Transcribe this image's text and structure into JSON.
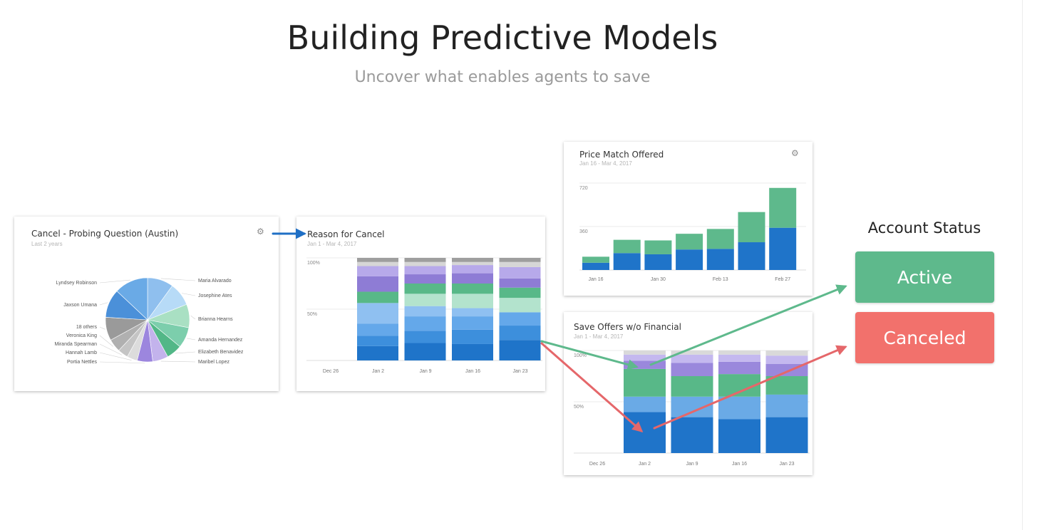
{
  "header": {
    "title": "Building Predictive Models",
    "subtitle": "Uncover what enables agents to save"
  },
  "account_status": {
    "title": "Account Status",
    "active_label": "Active",
    "canceled_label": "Canceled",
    "active_color": "#5eb98c",
    "canceled_color": "#f2716c"
  },
  "colors": {
    "arrow_blue": "#1f6fc5",
    "arrow_green": "#5eb98c",
    "arrow_red": "#e5676a"
  },
  "chart_data": [
    {
      "type": "pie",
      "title": "Cancel - Probing Question (Austin)",
      "subtitle": "Last 2 years",
      "slices": [
        {
          "label": "Maria Alvarado",
          "value": 10,
          "color": "#8fbfee"
        },
        {
          "label": "Josephine Ates",
          "value": 9,
          "color": "#b7dbf7"
        },
        {
          "label": "Brianna Hearns",
          "value": 9,
          "color": "#a9e0c3"
        },
        {
          "label": "Amanda Hernandez",
          "value": 8,
          "color": "#7cceac"
        },
        {
          "label": "Elizabeth Benavidez",
          "value": 6,
          "color": "#52b787"
        },
        {
          "label": "Maribel Lopez",
          "value": 6,
          "color": "#c3b3ec"
        },
        {
          "label": "Portia Nettles",
          "value": 6,
          "color": "#9c86de"
        },
        {
          "label": "Hannah Lamb",
          "value": 4,
          "color": "#dcdcdc"
        },
        {
          "label": "Miranda Spearman",
          "value": 4,
          "color": "#c4c4c4"
        },
        {
          "label": "Veronica King",
          "value": 5,
          "color": "#b0b0b0"
        },
        {
          "label": "18 others",
          "value": 9,
          "color": "#9a9a9a"
        },
        {
          "label": "Jaxson Umana",
          "value": 11,
          "color": "#4b90d9"
        },
        {
          "label": "Lyndsey Robinson",
          "value": 13,
          "color": "#6aaae6"
        }
      ]
    },
    {
      "type": "bar",
      "stacked": true,
      "normalized": true,
      "title": "Reason for Cancel",
      "subtitle": "Jan 1 - Mar 4, 2017",
      "categories": [
        "Jan 2",
        "Jan 9",
        "Jan 16",
        "Jan 23"
      ],
      "x_tick_labels": [
        "Dec 26",
        "Jan 2",
        "Jan 9",
        "Jan 16",
        "Jan 23"
      ],
      "y_tick_labels": [
        "100%",
        "50%"
      ],
      "ylim": [
        0,
        100
      ],
      "series": [
        {
          "values": [
            14,
            17,
            16,
            20
          ],
          "color": "#1f74c9"
        },
        {
          "values": [
            10,
            12,
            14,
            14
          ],
          "color": "#3d8fdc"
        },
        {
          "values": [
            12,
            14,
            13,
            13
          ],
          "color": "#64a8ea"
        },
        {
          "values": [
            20,
            10,
            8,
            0
          ],
          "color": "#8fc0f1"
        },
        {
          "values": [
            0,
            12,
            14,
            14
          ],
          "color": "#b3e3cd"
        },
        {
          "values": [
            11,
            10,
            10,
            10
          ],
          "color": "#58b888"
        },
        {
          "values": [
            15,
            9,
            10,
            9
          ],
          "color": "#8e7cd5"
        },
        {
          "values": [
            10,
            8,
            8,
            11
          ],
          "color": "#b7a9ea"
        },
        {
          "values": [
            4,
            4,
            3,
            5
          ],
          "color": "#d6d6d6"
        },
        {
          "values": [
            4,
            4,
            4,
            4
          ],
          "color": "#9e9e9e"
        }
      ]
    },
    {
      "type": "bar",
      "stacked": true,
      "title": "Price Match Offered",
      "subtitle": "Jan 16 - Mar 4, 2017",
      "categories": [
        "Jan 16",
        "Jan 23",
        "Jan 30",
        "Feb 6",
        "Feb 13",
        "Feb 20",
        "Feb 27"
      ],
      "x_tick_labels": [
        "Jan 16",
        "Jan 30",
        "Feb 13",
        "Feb 27"
      ],
      "y_ticks": [
        360,
        720
      ],
      "ylim": [
        0,
        720
      ],
      "series": [
        {
          "values": [
            60,
            140,
            130,
            170,
            175,
            230,
            350
          ],
          "color": "#1f74c9"
        },
        {
          "values": [
            50,
            110,
            115,
            130,
            165,
            250,
            330
          ],
          "color": "#5eb98c"
        }
      ]
    },
    {
      "type": "bar",
      "stacked": true,
      "normalized": true,
      "title": "Save Offers w/o Financial",
      "subtitle": "Jan 1 - Mar 4, 2017",
      "categories": [
        "Jan 2",
        "Jan 9",
        "Jan 16",
        "Jan 23"
      ],
      "x_tick_labels": [
        "Dec 26",
        "Jan 2",
        "Jan 9",
        "Jan 16",
        "Jan 23"
      ],
      "y_tick_labels": [
        "100%",
        "50%"
      ],
      "ylim": [
        0,
        100
      ],
      "series": [
        {
          "values": [
            40,
            35,
            33,
            35
          ],
          "color": "#1f74c9"
        },
        {
          "values": [
            15,
            20,
            22,
            22
          ],
          "color": "#6aaae6"
        },
        {
          "values": [
            27,
            20,
            22,
            18
          ],
          "color": "#58b888"
        },
        {
          "values": [
            8,
            13,
            12,
            12
          ],
          "color": "#9a88dc"
        },
        {
          "values": [
            6,
            8,
            7,
            8
          ],
          "color": "#c4b8ef"
        },
        {
          "values": [
            4,
            4,
            4,
            5
          ],
          "color": "#d9d9d9"
        }
      ]
    }
  ]
}
